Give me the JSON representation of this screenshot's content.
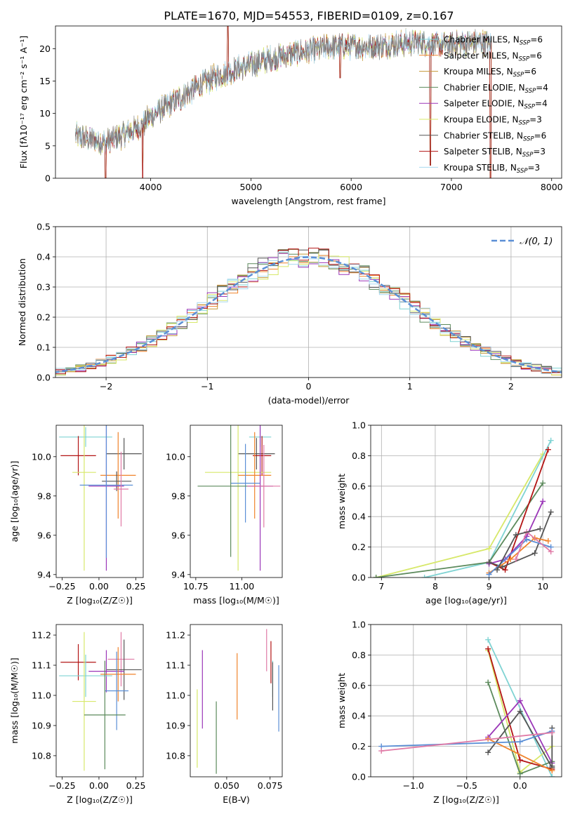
{
  "figure": {
    "title": "PLATE=1670, MJD=54553, FIBERID=0109, z=0.167"
  },
  "chart_data": [
    {
      "id": "spectrum",
      "type": "line",
      "xlabel": "wavelength [Angstrom, rest frame]",
      "ylabel": "Flux [fλ10⁻¹⁷ erg cm⁻² s⁻¹ A⁻¹]",
      "xlim": [
        3050,
        8100
      ],
      "ylim": [
        0,
        23.5
      ],
      "xticks": [
        4000,
        5000,
        6000,
        7000,
        8000
      ],
      "yticks": [
        0,
        5,
        10,
        15,
        20
      ],
      "legend_position": "top-right",
      "series": [
        {
          "name": "Chabrier MILES, N_SSP=6",
          "color": "#7fd3d3"
        },
        {
          "name": "Salpeter MILES, N_SSP=6",
          "color": "#f0832b"
        },
        {
          "name": "Kroupa MILES, N_SSP=6",
          "color": "#c49a3a"
        },
        {
          "name": "Chabrier ELODIE, N_SSP=4",
          "color": "#5c8a5c"
        },
        {
          "name": "Salpeter ELODIE, N_SSP=4",
          "color": "#9b37b8"
        },
        {
          "name": "Kroupa ELODIE, N_SSP=3",
          "color": "#d7e86a"
        },
        {
          "name": "Chabrier STELIB, N_SSP=6",
          "color": "#555555"
        },
        {
          "name": "Salpeter STELIB, N_SSP=3",
          "color": "#b31515"
        },
        {
          "name": "Kroupa STELIB, N_SSP=3",
          "color": "#a8d9f0"
        }
      ],
      "continuum": {
        "x": [
          3250,
          3400,
          3550,
          3700,
          3900,
          4000,
          4100,
          4300,
          4500,
          4700,
          4900,
          5100,
          5300,
          5500,
          5700,
          5900,
          6100,
          6300,
          6500,
          6700,
          6900,
          7100,
          7300,
          7400
        ],
        "y": [
          6.5,
          6.0,
          5.5,
          6.5,
          8.0,
          9.5,
          10.5,
          12.5,
          14.5,
          16.0,
          17.0,
          18.0,
          18.8,
          19.5,
          20.0,
          20.5,
          20.3,
          20.5,
          20.8,
          21.0,
          20.5,
          20.8,
          21.0,
          20.5
        ]
      }
    },
    {
      "id": "residuals",
      "type": "step",
      "xlabel": "(data-model)/error",
      "ylabel": "Normed distribution",
      "xlim": [
        -2.5,
        2.5
      ],
      "ylim": [
        0,
        0.5
      ],
      "xticks": [
        -2,
        -1,
        0,
        1,
        2
      ],
      "xticklabels": [
        "−2",
        "−1",
        "0",
        "1",
        "2"
      ],
      "yticks": [
        0,
        0.1,
        0.2,
        0.3,
        0.4,
        0.5
      ],
      "grid": true,
      "legend_position": "top-right",
      "reference_curve": {
        "name": "𝒩(0, 1)",
        "color": "#5b8fd6"
      }
    },
    {
      "id": "age-vs-Z",
      "type": "errorbar",
      "xlabel": "Z [log₁₀(Z/Z☉)]",
      "ylabel": "age  [log₁₀(age/yr)]",
      "xlim": [
        -0.29,
        0.3
      ],
      "ylim": [
        9.385,
        10.16
      ],
      "xticks": [
        -0.25,
        0.0,
        0.25
      ],
      "xticklabels": [
        "−0.25",
        "0.00",
        "0.25"
      ],
      "yticks": [
        9.4,
        9.6,
        9.8,
        10.0
      ],
      "points": [
        {
          "color": "#7fd3d3",
          "x": -0.09,
          "xerr": 0.18,
          "y": 10.1,
          "yerr": 0.05
        },
        {
          "color": "#b31515",
          "x": -0.14,
          "xerr": 0.12,
          "y": 10.005,
          "yerr": 0.1
        },
        {
          "color": "#555555",
          "x": 0.17,
          "xerr": 0.12,
          "y": 10.015,
          "yerr": 0.08
        },
        {
          "color": "#d7e86a",
          "x": -0.1,
          "xerr": 0.08,
          "y": 9.92,
          "yerr": 0.5
        },
        {
          "color": "#f0832b",
          "x": 0.13,
          "xerr": 0.12,
          "y": 9.905,
          "yerr": 0.22
        },
        {
          "color": "#555555",
          "x": 0.12,
          "xerr": 0.1,
          "y": 9.875,
          "yerr": 0.05
        },
        {
          "color": "#9b37b8",
          "x": 0.05,
          "xerr": 0.12,
          "y": 9.85,
          "yerr": 0.43
        },
        {
          "color": "#5b8fd6",
          "x": 0.05,
          "xerr": 0.18,
          "y": 9.855,
          "yerr": 0.37
        },
        {
          "color": "#e07aa6",
          "x": 0.15,
          "xerr": 0.05,
          "y": 9.835,
          "yerr": 0.19
        }
      ]
    },
    {
      "id": "age-vs-mass",
      "type": "errorbar",
      "xlabel": "mass [log₁₀(M/M☉)]",
      "ylabel": "",
      "xlim": [
        10.72,
        11.22
      ],
      "ylim": [
        9.385,
        10.16
      ],
      "xticks": [
        10.75,
        11.0
      ],
      "xticklabels": [
        "10.75",
        "11.00"
      ],
      "yticks": [
        9.4,
        9.6,
        9.8,
        10.0
      ],
      "points": [
        {
          "color": "#7fd3d3",
          "x": 11.1,
          "xerr": 0.06,
          "y": 10.1,
          "yerr": 0.05
        },
        {
          "color": "#555555",
          "x": 11.08,
          "xerr": 0.1,
          "y": 10.015,
          "yerr": 0.08
        },
        {
          "color": "#b31515",
          "x": 11.11,
          "xerr": 0.05,
          "y": 10.005,
          "yerr": 0.1
        },
        {
          "color": "#d7e86a",
          "x": 10.98,
          "xerr": 0.18,
          "y": 9.92,
          "yerr": 0.5
        },
        {
          "color": "#f0832b",
          "x": 11.07,
          "xerr": 0.09,
          "y": 9.905,
          "yerr": 0.22
        },
        {
          "color": "#5b8fd6",
          "x": 11.02,
          "xerr": 0.08,
          "y": 9.865,
          "yerr": 0.2
        },
        {
          "color": "#5c8a5c",
          "x": 10.94,
          "xerr": 0.18,
          "y": 9.85,
          "yerr": 0.36
        },
        {
          "color": "#9b37b8",
          "x": 11.1,
          "xerr": 0.07,
          "y": 9.85,
          "yerr": 0.43
        },
        {
          "color": "#e07aa6",
          "x": 11.12,
          "xerr": 0.09,
          "y": 9.85,
          "yerr": 0.21
        }
      ]
    },
    {
      "id": "weight-vs-age",
      "type": "line",
      "xlabel": "age  [log₁₀(age/yr)]",
      "ylabel": "mass weight",
      "xlim": [
        6.8,
        10.35
      ],
      "ylim": [
        0,
        1.0
      ],
      "xticks": [
        7,
        8,
        9,
        10
      ],
      "yticks": [
        0,
        0.2,
        0.4,
        0.6,
        0.8,
        1.0
      ],
      "grid": true,
      "series": [
        {
          "color": "#d7e86a",
          "x": [
            6.9,
            9.0,
            10.0
          ],
          "y": [
            0.0,
            0.19,
            0.81
          ]
        },
        {
          "color": "#7fd3d3",
          "x": [
            7.8,
            9.0,
            10.15
          ],
          "y": [
            0.0,
            0.1,
            0.9
          ]
        },
        {
          "color": "#5c8a5c",
          "x": [
            6.9,
            9.0,
            10.0
          ],
          "y": [
            0.0,
            0.1,
            0.62
          ]
        },
        {
          "color": "#b31515",
          "x": [
            9.0,
            9.3,
            10.1
          ],
          "y": [
            0.1,
            0.05,
            0.84
          ]
        },
        {
          "color": "#9b37b8",
          "x": [
            9.0,
            9.3,
            9.7,
            10.0
          ],
          "y": [
            0.09,
            0.12,
            0.27,
            0.5
          ]
        },
        {
          "color": "#555555",
          "x": [
            9.0,
            9.25,
            9.85,
            10.15
          ],
          "y": [
            0.1,
            0.07,
            0.16,
            0.43
          ]
        },
        {
          "color": "#f0832b",
          "x": [
            9.0,
            9.4,
            9.85,
            10.1
          ],
          "y": [
            0.03,
            0.12,
            0.26,
            0.24
          ]
        },
        {
          "color": "#5b8fd6",
          "x": [
            9.0,
            9.7,
            10.15
          ],
          "y": [
            0.02,
            0.25,
            0.2
          ]
        },
        {
          "color": "#e07aa6",
          "x": [
            9.5,
            9.7,
            10.15
          ],
          "y": [
            0.12,
            0.3,
            0.17
          ]
        },
        {
          "color": "#555555",
          "x": [
            9.15,
            9.5,
            9.95
          ],
          "y": [
            0.05,
            0.28,
            0.32
          ]
        }
      ]
    },
    {
      "id": "mass-vs-Z",
      "type": "errorbar",
      "xlabel": "Z [log₁₀(Z/Z☉)]",
      "ylabel": "mass [log₁₀(M/M☉)]",
      "xlim": [
        -0.29,
        0.3
      ],
      "ylim": [
        10.73,
        11.235
      ],
      "xticks": [
        -0.25,
        0.0,
        0.25
      ],
      "xticklabels": [
        "−0.25",
        "0.00",
        "0.25"
      ],
      "yticks": [
        10.8,
        10.9,
        11.0,
        11.1,
        11.2
      ],
      "points": [
        {
          "color": "#b31515",
          "x": -0.14,
          "xerr": 0.12,
          "y": 11.11,
          "yerr": 0.06
        },
        {
          "color": "#e07aa6",
          "x": 0.15,
          "xerr": 0.09,
          "y": 11.12,
          "yerr": 0.09
        },
        {
          "color": "#555555",
          "x": 0.17,
          "xerr": 0.12,
          "y": 11.085,
          "yerr": 0.1
        },
        {
          "color": "#9b37b8",
          "x": 0.05,
          "xerr": 0.12,
          "y": 11.08,
          "yerr": 0.07
        },
        {
          "color": "#7fd3d3",
          "x": -0.09,
          "xerr": 0.18,
          "y": 11.065,
          "yerr": 0.07
        },
        {
          "color": "#f0832b",
          "x": 0.13,
          "xerr": 0.12,
          "y": 11.07,
          "yerr": 0.09
        },
        {
          "color": "#5b8fd6",
          "x": 0.12,
          "xerr": 0.08,
          "y": 11.015,
          "yerr": 0.13
        },
        {
          "color": "#d7e86a",
          "x": -0.1,
          "xerr": 0.08,
          "y": 10.98,
          "yerr": 0.23
        },
        {
          "color": "#5c8a5c",
          "x": 0.04,
          "xerr": 0.14,
          "y": 10.935,
          "yerr": 0.18
        }
      ]
    },
    {
      "id": "mass-vs-ebv",
      "type": "errorbar",
      "xlabel": "E(B-V)",
      "ylabel": "",
      "xlim": [
        0.029,
        0.082
      ],
      "ylim": [
        10.73,
        11.235
      ],
      "xticks": [
        0.05,
        0.075
      ],
      "xticklabels": [
        "0.050",
        "0.075"
      ],
      "yticks": [
        10.8,
        10.9,
        11.0,
        11.1,
        11.2
      ],
      "points": [
        {
          "color": "#d7e86a",
          "x": 0.033,
          "y": 10.89,
          "yerr": 0.13
        },
        {
          "color": "#9b37b8",
          "x": 0.036,
          "y": 11.02,
          "yerr": 0.13
        },
        {
          "color": "#5c8a5c",
          "x": 0.044,
          "y": 10.86,
          "yerr": 0.12
        },
        {
          "color": "#f0832b",
          "x": 0.056,
          "y": 11.03,
          "yerr": 0.11
        },
        {
          "color": "#e07aa6",
          "x": 0.073,
          "y": 11.15,
          "yerr": 0.07
        },
        {
          "color": "#b31515",
          "x": 0.0755,
          "y": 11.11,
          "yerr": 0.07
        },
        {
          "color": "#7fd3d3",
          "x": 0.0765,
          "y": 11.055,
          "yerr": 0.06
        },
        {
          "color": "#555555",
          "x": 0.0765,
          "y": 11.03,
          "yerr": 0.08
        },
        {
          "color": "#5b8fd6",
          "x": 0.08,
          "y": 10.99,
          "yerr": 0.11
        }
      ]
    },
    {
      "id": "weight-vs-Z",
      "type": "line",
      "xlabel": "Z [log₁₀(Z/Z☉)]",
      "ylabel": "mass weight",
      "xlim": [
        -1.4,
        0.39
      ],
      "ylim": [
        0,
        1.0
      ],
      "xticks": [
        -1.0,
        -0.5,
        0.0
      ],
      "xticklabels": [
        "−1.0",
        "−0.5",
        "0.0"
      ],
      "yticks": [
        0,
        0.2,
        0.4,
        0.6,
        0.8,
        1.0
      ],
      "grid": true,
      "series": [
        {
          "color": "#7fd3d3",
          "x": [
            -0.3,
            0.3
          ],
          "y": [
            0.9,
            0.0
          ]
        },
        {
          "color": "#d7e86a",
          "x": [
            -0.3,
            0.0,
            0.3
          ],
          "y": [
            0.83,
            0.03,
            0.2
          ]
        },
        {
          "color": "#b31515",
          "x": [
            -0.3,
            0.0,
            0.3
          ],
          "y": [
            0.84,
            0.11,
            0.05
          ]
        },
        {
          "color": "#5c8a5c",
          "x": [
            -0.3,
            0.0,
            0.3
          ],
          "y": [
            0.62,
            0.02,
            0.1
          ]
        },
        {
          "color": "#9b37b8",
          "x": [
            -0.3,
            0.0,
            0.3
          ],
          "y": [
            0.26,
            0.5,
            0.09
          ]
        },
        {
          "color": "#555555",
          "x": [
            -0.3,
            0.0,
            0.3
          ],
          "y": [
            0.16,
            0.43,
            0.06
          ]
        },
        {
          "color": "#555555",
          "x": [
            0.3,
            0.3
          ],
          "y": [
            0.32,
            0.07
          ]
        },
        {
          "color": "#f0832b",
          "x": [
            -0.3,
            0.3
          ],
          "y": [
            0.25,
            0.04
          ]
        },
        {
          "color": "#5b8fd6",
          "x": [
            -1.3,
            0.0,
            0.3
          ],
          "y": [
            0.2,
            0.23,
            0.3
          ]
        },
        {
          "color": "#e07aa6",
          "x": [
            -1.3,
            0.3
          ],
          "y": [
            0.17,
            0.29
          ]
        }
      ]
    }
  ]
}
